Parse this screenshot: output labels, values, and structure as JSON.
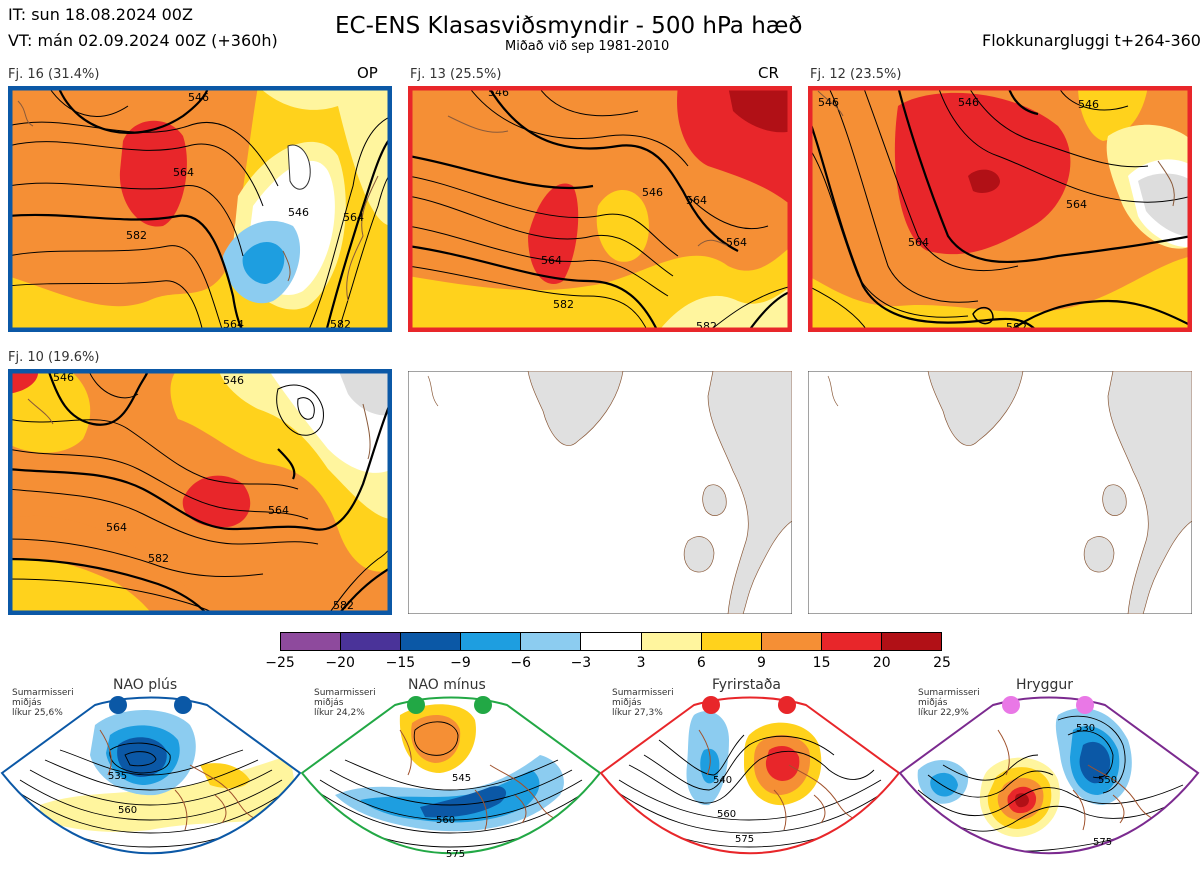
{
  "header": {
    "init_time": "IT: sun 18.08.2024 00Z",
    "valid_time": "VT: mán 02.09.2024 00Z  (+360h)",
    "title": "EC-ENS Klasasviðsmyndir - 500 hPa hæð",
    "subtitle": "Miðað við sep 1981-2010",
    "window": "Flokkunargluggi t+264-360"
  },
  "panels": [
    {
      "label": "Fj. 16 (31.4%)",
      "tag": "OP",
      "border": "#0b58a6",
      "contours": [
        "564",
        "582",
        "546",
        "564",
        "564",
        "546",
        "582"
      ]
    },
    {
      "label": "Fj. 13 (25.5%)",
      "tag": "CR",
      "border": "#e8262a",
      "contours": [
        "546",
        "564",
        "582",
        "546",
        "564",
        "564",
        "582"
      ]
    },
    {
      "label": "Fj. 12 (23.5%)",
      "tag": "",
      "border": "#e8262a",
      "contours": [
        "546",
        "546",
        "546",
        "564",
        "564",
        "582"
      ]
    },
    {
      "label": "Fj. 10 (19.6%)",
      "tag": "",
      "border": "#0b58a6",
      "contours": [
        "546",
        "546",
        "564",
        "564",
        "582",
        "582"
      ]
    }
  ],
  "colorbar": {
    "ticks": [
      "−25",
      "−20",
      "−15",
      "−9",
      "−6",
      "−3",
      "3",
      "6",
      "9",
      "15",
      "20",
      "25"
    ],
    "colors": [
      "#8e4a9d",
      "#4a3399",
      "#0b58a6",
      "#1e9ee0",
      "#8cccf0",
      "#ffffff",
      "#fff59e",
      "#ffd21c",
      "#f58f35",
      "#e8262a",
      "#b11016"
    ]
  },
  "regimes": [
    {
      "title": "NAO plús",
      "info": "Sumarmisseri\nmiðjás\nlíkur 25,6%",
      "color": "#0b58a6",
      "contours": [
        "535",
        "560"
      ]
    },
    {
      "title": "NAO mínus",
      "info": "Sumarmisseri\nmiðjás\nlíkur 24,2%",
      "color": "#22a845",
      "contours": [
        "545",
        "560",
        "575"
      ]
    },
    {
      "title": "Fyrirstaða",
      "info": "Sumarmisseri\nmiðjás\nlíkur 27,3%",
      "color": "#e8262a",
      "contours": [
        "540",
        "560",
        "575"
      ]
    },
    {
      "title": "Hryggur",
      "info": "Sumarmisseri\nmiðjás\nlíkur 22,9%",
      "color": "#e978e6",
      "contours": [
        "530",
        "550",
        "575"
      ]
    }
  ]
}
